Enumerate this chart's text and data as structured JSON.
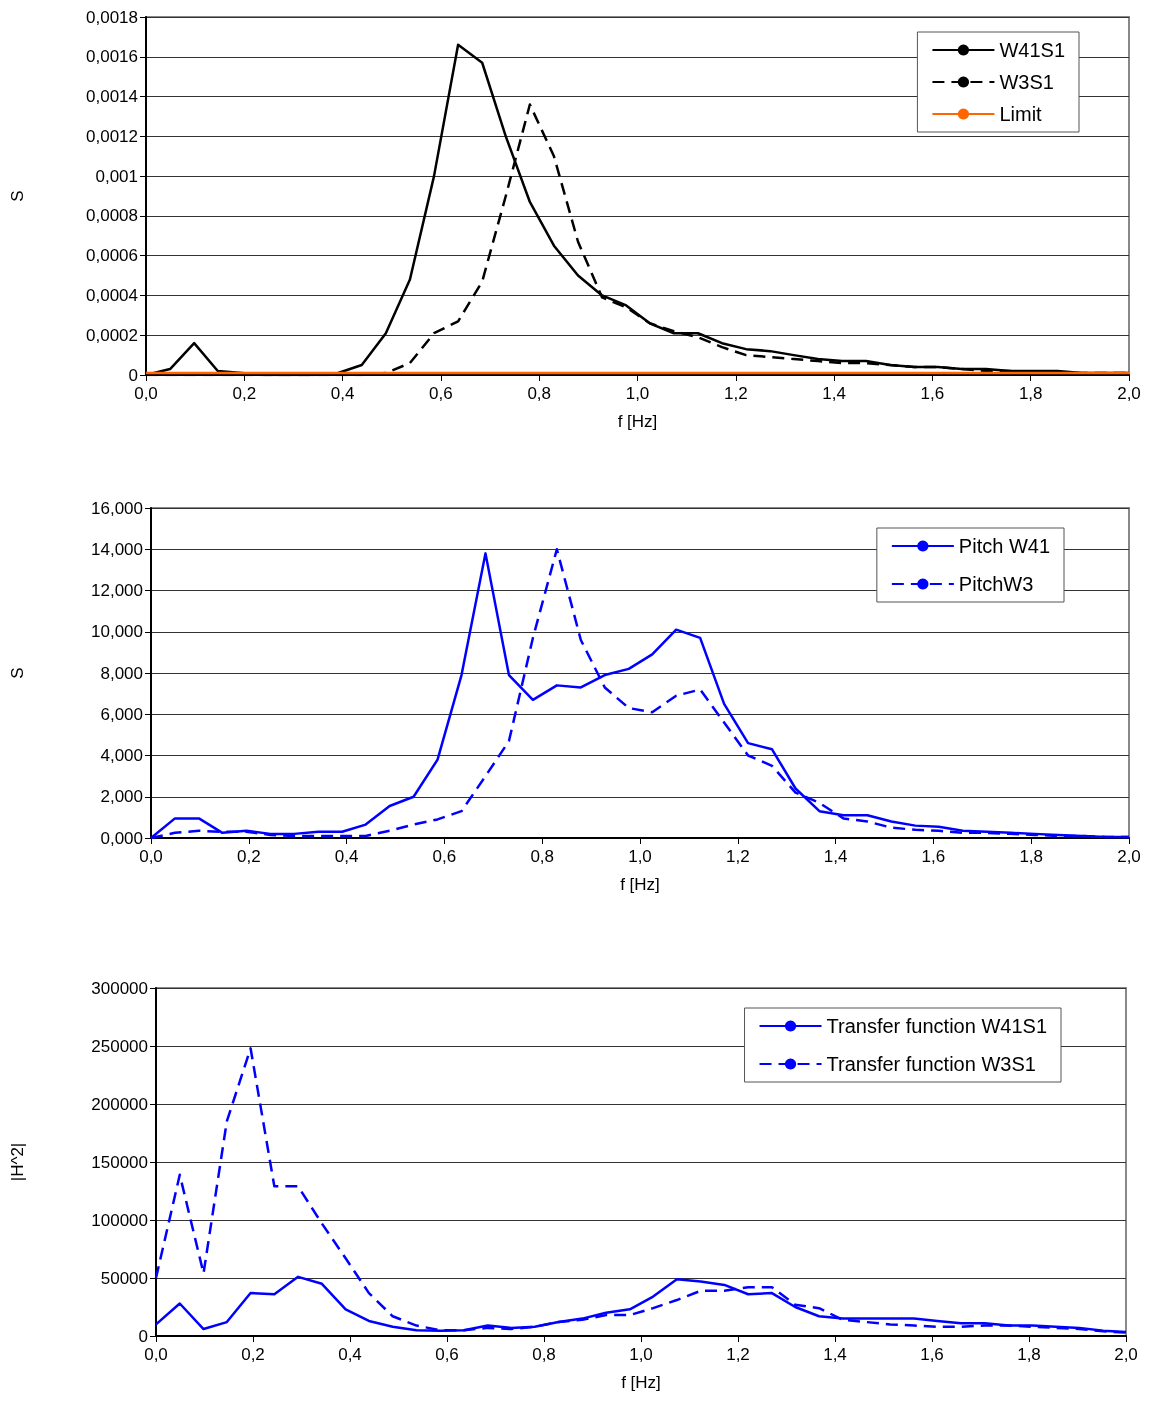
{
  "chart_data": [
    {
      "type": "line",
      "xlabel": "f [Hz]",
      "ylabel": "S",
      "legend": "top right",
      "grid": "y",
      "marker": "none",
      "x": [
        0,
        0.049,
        0.098,
        0.146,
        0.195,
        0.244,
        0.293,
        0.342,
        0.391,
        0.439,
        0.488,
        0.537,
        0.586,
        0.635,
        0.684,
        0.732,
        0.781,
        0.83,
        0.879,
        0.928,
        0.977,
        1.025,
        1.074,
        1.123,
        1.172,
        1.221,
        1.27,
        1.318,
        1.367,
        1.416,
        1.465,
        1.514,
        1.563,
        1.611,
        1.66,
        1.709,
        1.758,
        1.807,
        1.855,
        1.904,
        1.953,
        2.0
      ],
      "series": [
        {
          "name": "W41S1",
          "color": "#000000",
          "line_style": "solid",
          "values": [
            0,
            3e-05,
            0.00016,
            2e-05,
            1e-05,
            0,
            0,
            0,
            1e-05,
            5e-05,
            0.00021,
            0.00048,
            0.001,
            0.00166,
            0.00157,
            0.0012,
            0.00087,
            0.00065,
            0.0005,
            0.0004,
            0.00035,
            0.00026,
            0.00021,
            0.00021,
            0.00016,
            0.00013,
            0.00012,
            0.0001,
            8e-05,
            7e-05,
            7e-05,
            5e-05,
            4e-05,
            4e-05,
            3e-05,
            3e-05,
            2e-05,
            2e-05,
            2e-05,
            1e-05,
            1e-05,
            1e-05
          ]
        },
        {
          "name": "W3S1",
          "color": "#000000",
          "line_style": "dashed",
          "values": [
            0,
            0,
            0,
            0,
            0,
            0,
            0,
            0,
            0,
            0,
            1e-05,
            6e-05,
            0.00021,
            0.00027,
            0.00047,
            0.0009,
            0.00136,
            0.0011,
            0.00067,
            0.00039,
            0.00034,
            0.00026,
            0.00022,
            0.00019,
            0.00014,
            0.0001,
            9e-05,
            8e-05,
            7e-05,
            6e-05,
            6e-05,
            5e-05,
            4e-05,
            4e-05,
            3e-05,
            2e-05,
            2e-05,
            1e-05,
            1e-05,
            1e-05,
            1e-05,
            1e-05
          ]
        },
        {
          "name": "Limit",
          "color": "#ff6600",
          "line_style": "solid",
          "x": [
            0,
            2.0
          ],
          "values": [
            1e-05,
            1e-05
          ]
        }
      ],
      "xlim": [
        0,
        2.0
      ],
      "xticks": [
        {
          "value": 0,
          "label": "0,0"
        },
        {
          "value": 0.2,
          "label": "0,2"
        },
        {
          "value": 0.4,
          "label": "0,4"
        },
        {
          "value": 0.6,
          "label": "0,6"
        },
        {
          "value": 0.8,
          "label": "0,8"
        },
        {
          "value": 1.0,
          "label": "1,0"
        },
        {
          "value": 1.2,
          "label": "1,2"
        },
        {
          "value": 1.4,
          "label": "1,4"
        },
        {
          "value": 1.6,
          "label": "1,6"
        },
        {
          "value": 1.8,
          "label": "1,8"
        },
        {
          "value": 2.0,
          "label": "2,0"
        }
      ],
      "ylim": [
        0,
        0.0018
      ],
      "yticks": [
        0,
        {
          "value": 0.0002,
          "label": "0,0002"
        },
        {
          "value": 0.0004,
          "label": "0,0004"
        },
        {
          "value": 0.0006,
          "label": "0,0006"
        },
        {
          "value": 0.0008,
          "label": "0,0008"
        },
        {
          "value": 0.001,
          "label": "0,001"
        },
        {
          "value": 0.0012,
          "label": "0,0012"
        },
        {
          "value": 0.0014,
          "label": "0,0014"
        },
        {
          "value": 0.0016,
          "label": "0,0016"
        },
        {
          "value": 0.0018,
          "label": "0,0018"
        }
      ]
    },
    {
      "type": "line",
      "xlabel": "f [Hz]",
      "ylabel": "S",
      "legend": "top right",
      "grid": "y",
      "marker": "none",
      "x": [
        0,
        0.049,
        0.098,
        0.146,
        0.195,
        0.244,
        0.293,
        0.342,
        0.391,
        0.439,
        0.488,
        0.537,
        0.586,
        0.635,
        0.684,
        0.732,
        0.781,
        0.83,
        0.879,
        0.928,
        0.977,
        1.025,
        1.074,
        1.123,
        1.172,
        1.221,
        1.27,
        1.318,
        1.367,
        1.416,
        1.465,
        1.514,
        1.563,
        1.611,
        1.66,
        1.709,
        1.758,
        1.807,
        1.855,
        1.904,
        1.953,
        2.0
      ],
      "series": [
        {
          "name": "Pitch W41",
          "color": "#0000ff",
          "line_style": "solid",
          "values": [
            0,
            0.95,
            0.95,
            0.25,
            0.35,
            0.2,
            0.2,
            0.3,
            0.3,
            0.65,
            1.55,
            2.0,
            3.8,
            7.9,
            13.8,
            7.9,
            6.7,
            7.4,
            7.3,
            7.9,
            8.2,
            8.9,
            10.1,
            9.7,
            6.5,
            4.6,
            4.3,
            2.4,
            1.3,
            1.1,
            1.1,
            0.8,
            0.6,
            0.55,
            0.35,
            0.3,
            0.25,
            0.2,
            0.15,
            0.1,
            0.05,
            0.05
          ]
        },
        {
          "name": "PitchW3",
          "color": "#0000ff",
          "line_style": "dashed",
          "values": [
            0,
            0.25,
            0.35,
            0.3,
            0.3,
            0.15,
            0.1,
            0.1,
            0.1,
            0.1,
            0.35,
            0.65,
            0.9,
            1.3,
            3.0,
            4.7,
            9.7,
            14.0,
            9.6,
            7.3,
            6.3,
            6.1,
            6.9,
            7.2,
            5.6,
            4.0,
            3.5,
            2.2,
            1.7,
            0.95,
            0.8,
            0.5,
            0.4,
            0.35,
            0.25,
            0.25,
            0.2,
            0.15,
            0.1,
            0.1,
            0.05,
            0.05
          ]
        }
      ],
      "xlim": [
        0,
        2.0
      ],
      "xticks": [
        {
          "value": 0,
          "label": "0,0"
        },
        {
          "value": 0.2,
          "label": "0,2"
        },
        {
          "value": 0.4,
          "label": "0,4"
        },
        {
          "value": 0.6,
          "label": "0,6"
        },
        {
          "value": 0.8,
          "label": "0,8"
        },
        {
          "value": 1.0,
          "label": "1,0"
        },
        {
          "value": 1.2,
          "label": "1,2"
        },
        {
          "value": 1.4,
          "label": "1,4"
        },
        {
          "value": 1.6,
          "label": "1,6"
        },
        {
          "value": 1.8,
          "label": "1,8"
        },
        {
          "value": 2.0,
          "label": "2,0"
        }
      ],
      "ylim": [
        0,
        16
      ],
      "yticks": [
        {
          "value": 0,
          "label": "0,000"
        },
        {
          "value": 2,
          "label": "2,000"
        },
        {
          "value": 4,
          "label": "4,000"
        },
        {
          "value": 6,
          "label": "6,000"
        },
        {
          "value": 8,
          "label": "8,000"
        },
        {
          "value": 10,
          "label": "10,000"
        },
        {
          "value": 12,
          "label": "12,000"
        },
        {
          "value": 14,
          "label": "14,000"
        },
        {
          "value": 16,
          "label": "16,000"
        }
      ]
    },
    {
      "type": "line",
      "xlabel": "f [Hz]",
      "ylabel": "|H^2|",
      "legend": "top right",
      "grid": "y",
      "marker": "none",
      "x": [
        0,
        0.049,
        0.098,
        0.146,
        0.195,
        0.244,
        0.293,
        0.342,
        0.391,
        0.439,
        0.488,
        0.537,
        0.586,
        0.635,
        0.684,
        0.732,
        0.781,
        0.83,
        0.879,
        0.928,
        0.977,
        1.025,
        1.074,
        1.123,
        1.172,
        1.221,
        1.27,
        1.318,
        1.367,
        1.416,
        1.465,
        1.514,
        1.563,
        1.611,
        1.66,
        1.709,
        1.758,
        1.807,
        1.855,
        1.904,
        1.953,
        2.0
      ],
      "series": [
        {
          "name": "Transfer function W41S1",
          "color": "#0000ff",
          "line_style": "solid",
          "values": [
            10000,
            28000,
            6000,
            12000,
            37000,
            36000,
            51000,
            45000,
            23000,
            13000,
            8000,
            5000,
            4500,
            5000,
            9000,
            7000,
            8000,
            12000,
            15000,
            20000,
            23000,
            34000,
            49000,
            47000,
            44000,
            36000,
            37000,
            25000,
            17000,
            15000,
            15000,
            15000,
            15000,
            13000,
            11000,
            11000,
            9000,
            9000,
            8000,
            7000,
            4500,
            3500
          ]
        },
        {
          "name": "Transfer function W3S1",
          "color": "#0000ff",
          "line_style": "dashed",
          "values": [
            50000,
            139000,
            54000,
            185000,
            248000,
            129000,
            129000,
            97000,
            67000,
            37000,
            17000,
            9000,
            5000,
            5000,
            7000,
            6000,
            8000,
            12000,
            14000,
            18000,
            18000,
            24000,
            31000,
            39000,
            39000,
            42000,
            42000,
            27000,
            24000,
            14000,
            12000,
            10000,
            9000,
            8000,
            8000,
            9000,
            9000,
            8000,
            7000,
            6000,
            4000,
            3000
          ]
        }
      ],
      "xlim": [
        0,
        2.0
      ],
      "xticks": [
        {
          "value": 0,
          "label": "0,0"
        },
        {
          "value": 0.2,
          "label": "0,2"
        },
        {
          "value": 0.4,
          "label": "0,4"
        },
        {
          "value": 0.6,
          "label": "0,6"
        },
        {
          "value": 0.8,
          "label": "0,8"
        },
        {
          "value": 1.0,
          "label": "1,0"
        },
        {
          "value": 1.2,
          "label": "1,2"
        },
        {
          "value": 1.4,
          "label": "1,4"
        },
        {
          "value": 1.6,
          "label": "1,6"
        },
        {
          "value": 1.8,
          "label": "1,8"
        },
        {
          "value": 2.0,
          "label": "2,0"
        }
      ],
      "ylim": [
        0,
        300000
      ],
      "yticks": [
        0,
        50000,
        100000,
        150000,
        200000,
        250000,
        300000
      ]
    }
  ]
}
